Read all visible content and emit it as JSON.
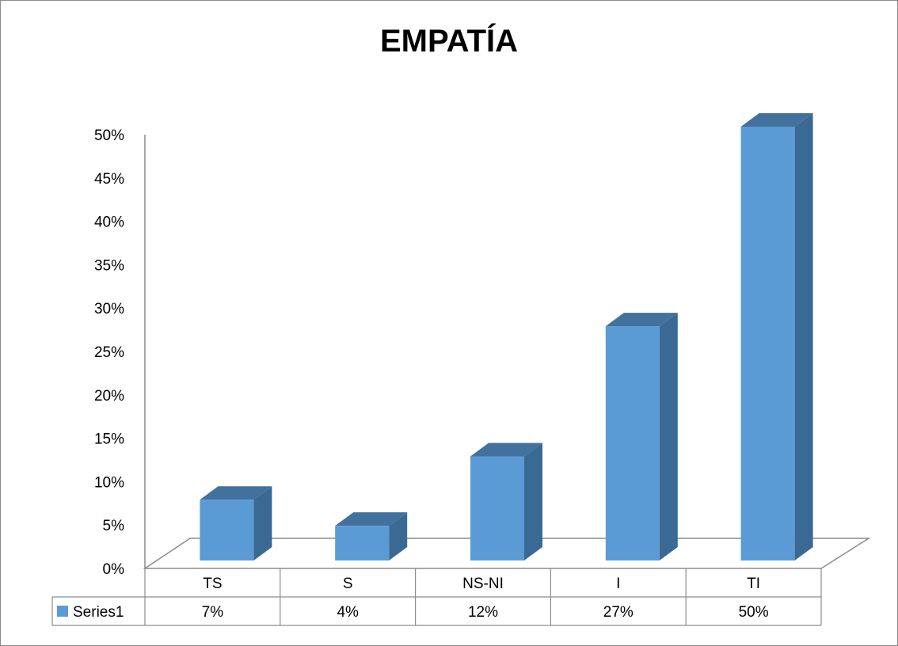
{
  "chart_data": {
    "type": "bar",
    "title": "EMPATÍA",
    "categories": [
      "TS",
      "S",
      "NS-NI",
      "I",
      "TI"
    ],
    "series": [
      {
        "name": "Series1",
        "values": [
          0.07,
          0.04,
          0.12,
          0.27,
          0.5
        ],
        "labels": [
          "7%",
          "4%",
          "12%",
          "27%",
          "50%"
        ]
      }
    ],
    "ylim": [
      0,
      0.5
    ],
    "yticks": [
      "0%",
      "5%",
      "10%",
      "15%",
      "20%",
      "25%",
      "30%",
      "35%",
      "40%",
      "45%",
      "50%"
    ],
    "legend": "data-table-below",
    "colors": {
      "bar_front": "#5b9bd5",
      "bar_side": "#3a6a93",
      "bar_top": "#41719c",
      "axis": "#8c8c8c"
    }
  }
}
